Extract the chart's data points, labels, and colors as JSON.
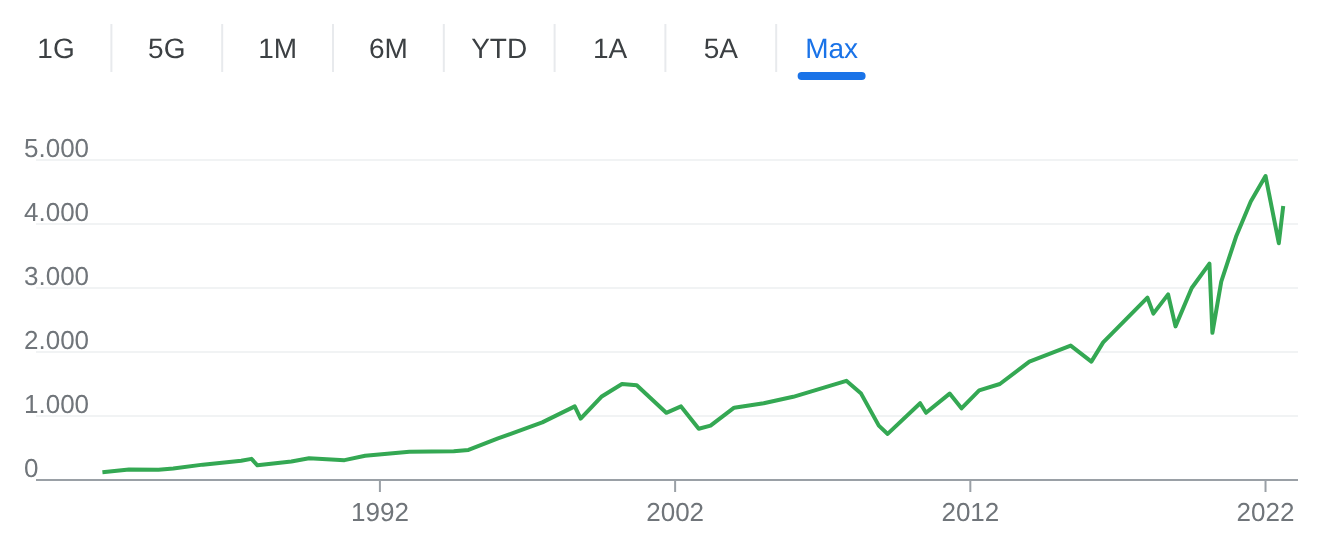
{
  "chart_data": {
    "type": "line",
    "annotations": [
      "1G",
      "5G",
      "1M",
      "6M",
      "YTD",
      "1A",
      "5A",
      "Max"
    ],
    "x": [
      1982.6,
      1983.5,
      1984.5,
      1985,
      1986,
      1987.3,
      1987.65,
      1987.85,
      1989,
      1989.6,
      1990.8,
      1991.5,
      1993,
      1994.5,
      1995,
      1996,
      1997.5,
      1998.6,
      1998.8,
      1999.5,
      2000.2,
      2000.7,
      2001.7,
      2002.2,
      2002.8,
      2003.2,
      2004,
      2005,
      2006,
      2007.8,
      2008.3,
      2008.9,
      2009.2,
      2010.3,
      2010.5,
      2011.3,
      2011.7,
      2012.3,
      2013,
      2014,
      2015.4,
      2016.1,
      2016.5,
      2018,
      2018.2,
      2018.7,
      2018.95,
      2019.5,
      2020.1,
      2020.2,
      2020.5,
      2021,
      2021.5,
      2022,
      2022.45,
      2022.6
    ],
    "series": [
      {
        "color": "#34a853",
        "values": [
          120,
          165,
          160,
          180,
          240,
          300,
          330,
          230,
          290,
          340,
          310,
          380,
          440,
          450,
          470,
          650,
          900,
          1150,
          960,
          1300,
          1500,
          1480,
          1050,
          1150,
          800,
          850,
          1130,
          1200,
          1300,
          1550,
          1350,
          850,
          720,
          1200,
          1050,
          1350,
          1120,
          1400,
          1500,
          1850,
          2100,
          1850,
          2150,
          2850,
          2600,
          2900,
          2400,
          3000,
          3380,
          2300,
          3100,
          3800,
          4350,
          4750,
          3700,
          4280
        ]
      }
    ],
    "xlim": [
      1980.35,
      2023.1
    ],
    "xticks": [
      1992,
      2002,
      2012,
      2022
    ],
    "ylim": [
      0,
      5000
    ],
    "yticks": [
      {
        "value": 0,
        "label": "0"
      },
      {
        "value": 1000,
        "label": "1.000"
      },
      {
        "value": 2000,
        "label": "2.000"
      },
      {
        "value": 3000,
        "label": "3.000"
      },
      {
        "value": 4000,
        "label": "4.000"
      },
      {
        "value": 5000,
        "label": "5.000"
      }
    ],
    "grid": "y"
  }
}
